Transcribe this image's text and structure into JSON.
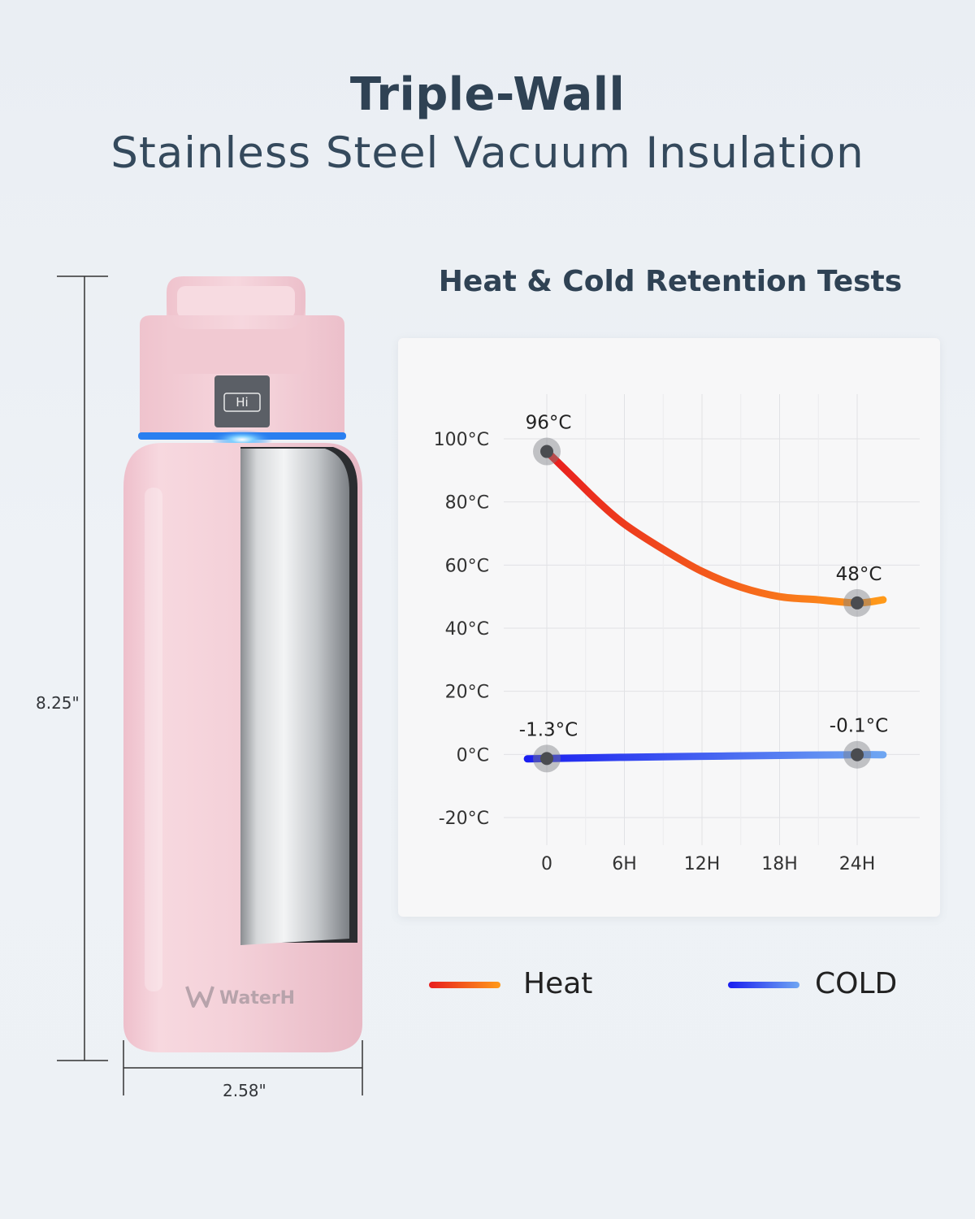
{
  "header": {
    "title": "Triple-Wall",
    "subtitle": "Stainless Steel Vacuum Insulation"
  },
  "product": {
    "brand": "WaterH",
    "lid_button": "Hi",
    "height_label": "8.25\"",
    "width_label": "2.58\"",
    "body_color": "#f2cdd6",
    "led_color": "#2a7ff0"
  },
  "chart_data": {
    "type": "line",
    "title": "Heat & Cold Retention Tests",
    "x_ticks": [
      "0",
      "6H",
      "12H",
      "18H",
      "24H"
    ],
    "y_ticks": [
      "100°C",
      "80°C",
      "60°C",
      "40°C",
      "20°C",
      "0°C",
      "-20°C"
    ],
    "ylim": [
      -20,
      100
    ],
    "xlim": [
      0,
      24
    ],
    "grid": true,
    "legend_position": "bottom",
    "series": [
      {
        "name": "Heat",
        "color_start": "#e81e1e",
        "color_end": "#ff9a1a",
        "x": [
          0,
          2,
          4,
          6,
          9,
          12,
          15,
          18,
          21,
          24,
          26
        ],
        "y": [
          96,
          88,
          80,
          73,
          65,
          58,
          53,
          50,
          49,
          48,
          49
        ],
        "points": [
          {
            "x": 0,
            "y": 96,
            "label": "96°C"
          },
          {
            "x": 24,
            "y": 48,
            "label": "48°C"
          }
        ]
      },
      {
        "name": "COLD",
        "color_start": "#1a1ef0",
        "color_end": "#6fa6f2",
        "x": [
          -1.5,
          0,
          6,
          12,
          18,
          24,
          26
        ],
        "y": [
          -1.4,
          -1.3,
          -0.9,
          -0.6,
          -0.3,
          -0.1,
          -0.1
        ],
        "points": [
          {
            "x": 0,
            "y": -1.3,
            "label": "-1.3°C"
          },
          {
            "x": 24,
            "y": -0.1,
            "label": "-0.1°C"
          }
        ]
      }
    ]
  }
}
